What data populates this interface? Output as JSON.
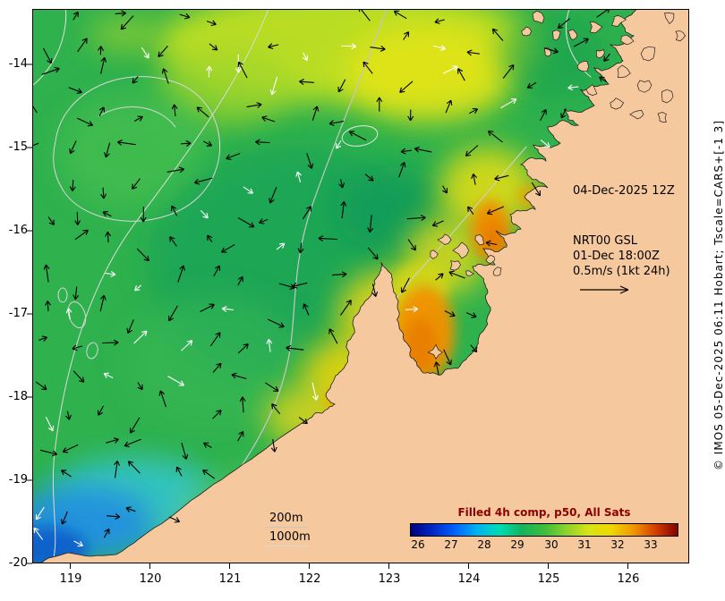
{
  "map": {
    "annotations": {
      "obs_time": "04-Dec-2025 12Z",
      "model_name": "NRT00 GSL",
      "model_time": "01-Dec 18:00Z",
      "vector_scale": "0.5m/s (1kt 24h)"
    },
    "depth_legend": {
      "d200": "200m",
      "d1000": "1000m"
    },
    "axis": {
      "x_ticks": [
        "119",
        "120",
        "121",
        "122",
        "123",
        "124",
        "125",
        "126"
      ],
      "y_ticks": [
        "-14",
        "-15",
        "-16",
        "-17",
        "-18",
        "-19",
        "-20"
      ]
    },
    "credit": "© IMOS 05-Dec-2025 06:11 Hobart; Tscale=CARS+[-1 3]",
    "colors": {
      "land": "#f5c89e",
      "ocean_base": "#2fb14d",
      "coast_stroke": "#1f1f1f"
    }
  },
  "colorbar": {
    "title": "Filled 4h comp, p50, All Sats",
    "title_color": "#8b0000",
    "ticks": [
      "26",
      "27",
      "28",
      "29",
      "30",
      "31",
      "32",
      "33"
    ],
    "gradient": [
      "#000080",
      "#0028c8",
      "#0064ff",
      "#00b4f0",
      "#00dcb4",
      "#14b45c",
      "#3cbe3c",
      "#8cd22c",
      "#d8e414",
      "#f0d800",
      "#f09800",
      "#d44000",
      "#820000"
    ]
  }
}
